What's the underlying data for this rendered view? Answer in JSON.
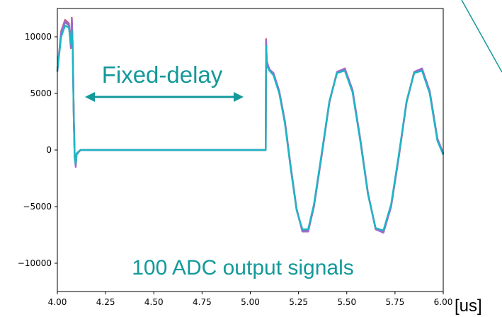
{
  "chart_data": {
    "type": "line",
    "title": "",
    "xlabel": "[us]",
    "ylabel": "",
    "xlim": [
      4.0,
      6.0
    ],
    "ylim": [
      -12500,
      12500
    ],
    "x_ticks": [
      "4.00",
      "4.25",
      "4.50",
      "4.75",
      "5.00",
      "5.25",
      "5.50",
      "5.75",
      "6.00"
    ],
    "y_ticks": [
      "10000",
      "5000",
      "0",
      "−5000",
      "−10000"
    ],
    "x_tick_values": [
      4.0,
      4.25,
      4.5,
      4.75,
      5.0,
      5.25,
      5.5,
      5.75,
      6.0
    ],
    "y_tick_values": [
      10000,
      5000,
      0,
      -5000,
      -10000
    ],
    "grid": false,
    "legend": "none",
    "series_count": 100,
    "series": [
      {
        "color": "#d95f5f",
        "points": [
          [
            4.0,
            7000
          ],
          [
            4.02,
            10500
          ],
          [
            4.04,
            11500
          ],
          [
            4.06,
            11200
          ],
          [
            4.07,
            9000
          ],
          [
            4.075,
            11700
          ],
          [
            4.08,
            9000
          ],
          [
            4.085,
            3000
          ],
          [
            4.09,
            -600
          ],
          [
            4.095,
            -1400
          ],
          [
            4.1,
            -400
          ],
          [
            4.12,
            0
          ],
          [
            5.08,
            0
          ],
          [
            5.082,
            9800
          ],
          [
            5.085,
            8000
          ],
          [
            5.09,
            7500
          ],
          [
            5.1,
            7100
          ],
          [
            5.12,
            6800
          ],
          [
            5.15,
            5200
          ],
          [
            5.18,
            2500
          ],
          [
            5.21,
            -1500
          ],
          [
            5.24,
            -5200
          ],
          [
            5.27,
            -7200
          ],
          [
            5.3,
            -7200
          ],
          [
            5.33,
            -5000
          ],
          [
            5.37,
            -500
          ],
          [
            5.41,
            4200
          ],
          [
            5.45,
            6900
          ],
          [
            5.49,
            7200
          ],
          [
            5.53,
            5300
          ],
          [
            5.57,
            1000
          ],
          [
            5.61,
            -3800
          ],
          [
            5.65,
            -7000
          ],
          [
            5.69,
            -7300
          ],
          [
            5.73,
            -5000
          ],
          [
            5.77,
            -600
          ],
          [
            5.81,
            4200
          ],
          [
            5.85,
            6900
          ],
          [
            5.89,
            7200
          ],
          [
            5.93,
            5200
          ],
          [
            5.97,
            1000
          ],
          [
            6.0,
            -300
          ]
        ]
      },
      {
        "color": "#7a7a7a",
        "points": [
          [
            4.0,
            7100
          ],
          [
            4.02,
            10300
          ],
          [
            4.04,
            11300
          ],
          [
            4.06,
            11000
          ],
          [
            4.07,
            9200
          ],
          [
            4.075,
            11400
          ],
          [
            4.08,
            8800
          ],
          [
            4.085,
            2800
          ],
          [
            4.09,
            -700
          ],
          [
            4.095,
            -1300
          ],
          [
            4.1,
            -300
          ],
          [
            4.12,
            0
          ],
          [
            5.08,
            0
          ],
          [
            5.082,
            9500
          ],
          [
            5.085,
            7800
          ],
          [
            5.09,
            7400
          ],
          [
            5.1,
            7000
          ],
          [
            5.12,
            6700
          ],
          [
            5.15,
            5100
          ],
          [
            5.18,
            2400
          ],
          [
            5.21,
            -1600
          ],
          [
            5.24,
            -5300
          ],
          [
            5.27,
            -7100
          ],
          [
            5.3,
            -7100
          ],
          [
            5.33,
            -4900
          ],
          [
            5.37,
            -400
          ],
          [
            5.41,
            4300
          ],
          [
            5.45,
            6900
          ],
          [
            5.49,
            7100
          ],
          [
            5.53,
            5200
          ],
          [
            5.57,
            900
          ],
          [
            5.61,
            -3900
          ],
          [
            5.65,
            -7000
          ],
          [
            5.69,
            -7200
          ],
          [
            5.73,
            -4900
          ],
          [
            5.77,
            -500
          ],
          [
            5.81,
            4300
          ],
          [
            5.85,
            6900
          ],
          [
            5.89,
            7100
          ],
          [
            5.93,
            5100
          ],
          [
            5.97,
            900
          ],
          [
            6.0,
            -400
          ]
        ]
      },
      {
        "color": "#9c6bd3",
        "points": [
          [
            4.0,
            6900
          ],
          [
            4.02,
            10400
          ],
          [
            4.04,
            11400
          ],
          [
            4.06,
            11100
          ],
          [
            4.07,
            9100
          ],
          [
            4.075,
            11600
          ],
          [
            4.08,
            8900
          ],
          [
            4.085,
            2900
          ],
          [
            4.09,
            -500
          ],
          [
            4.095,
            -1500
          ],
          [
            4.1,
            -400
          ],
          [
            4.12,
            0
          ],
          [
            5.08,
            0
          ],
          [
            5.082,
            9700
          ],
          [
            5.085,
            7900
          ],
          [
            5.09,
            7600
          ],
          [
            5.1,
            7100
          ],
          [
            5.12,
            6800
          ],
          [
            5.15,
            5200
          ],
          [
            5.18,
            2500
          ],
          [
            5.21,
            -1500
          ],
          [
            5.24,
            -5200
          ],
          [
            5.27,
            -7200
          ],
          [
            5.3,
            -7200
          ],
          [
            5.33,
            -5000
          ],
          [
            5.37,
            -500
          ],
          [
            5.41,
            4200
          ],
          [
            5.45,
            6900
          ],
          [
            5.49,
            7200
          ],
          [
            5.53,
            5300
          ],
          [
            5.57,
            1000
          ],
          [
            5.61,
            -3800
          ],
          [
            5.65,
            -7000
          ],
          [
            5.69,
            -7300
          ],
          [
            5.73,
            -5000
          ],
          [
            5.77,
            -600
          ],
          [
            5.81,
            4200
          ],
          [
            5.85,
            6900
          ],
          [
            5.89,
            7200
          ],
          [
            5.93,
            5200
          ],
          [
            5.97,
            1000
          ],
          [
            6.0,
            -300
          ]
        ]
      },
      {
        "color": "#1fb5c4",
        "points": [
          [
            4.0,
            7000
          ],
          [
            4.02,
            10000
          ],
          [
            4.04,
            11000
          ],
          [
            4.06,
            10800
          ],
          [
            4.07,
            9400
          ],
          [
            4.075,
            10600
          ],
          [
            4.08,
            8600
          ],
          [
            4.085,
            2600
          ],
          [
            4.09,
            -800
          ],
          [
            4.095,
            -1200
          ],
          [
            4.1,
            -300
          ],
          [
            4.12,
            0
          ],
          [
            5.08,
            0
          ],
          [
            5.082,
            9200
          ],
          [
            5.085,
            7600
          ],
          [
            5.09,
            7300
          ],
          [
            5.1,
            7000
          ],
          [
            5.12,
            6600
          ],
          [
            5.15,
            5000
          ],
          [
            5.18,
            2300
          ],
          [
            5.21,
            -1700
          ],
          [
            5.24,
            -5300
          ],
          [
            5.27,
            -7000
          ],
          [
            5.3,
            -7000
          ],
          [
            5.33,
            -4800
          ],
          [
            5.37,
            -300
          ],
          [
            5.41,
            4300
          ],
          [
            5.45,
            6800
          ],
          [
            5.49,
            7000
          ],
          [
            5.53,
            5100
          ],
          [
            5.57,
            800
          ],
          [
            5.61,
            -3900
          ],
          [
            5.65,
            -6900
          ],
          [
            5.69,
            -7100
          ],
          [
            5.73,
            -4800
          ],
          [
            5.77,
            -400
          ],
          [
            5.81,
            4300
          ],
          [
            5.85,
            6800
          ],
          [
            5.89,
            7000
          ],
          [
            5.93,
            5000
          ],
          [
            5.97,
            800
          ],
          [
            6.0,
            -400
          ]
        ]
      }
    ],
    "annotations": {
      "fixed_delay": "Fixed-delay",
      "signals": "100 ADC output signals"
    },
    "annotation_color": "#13999b"
  }
}
